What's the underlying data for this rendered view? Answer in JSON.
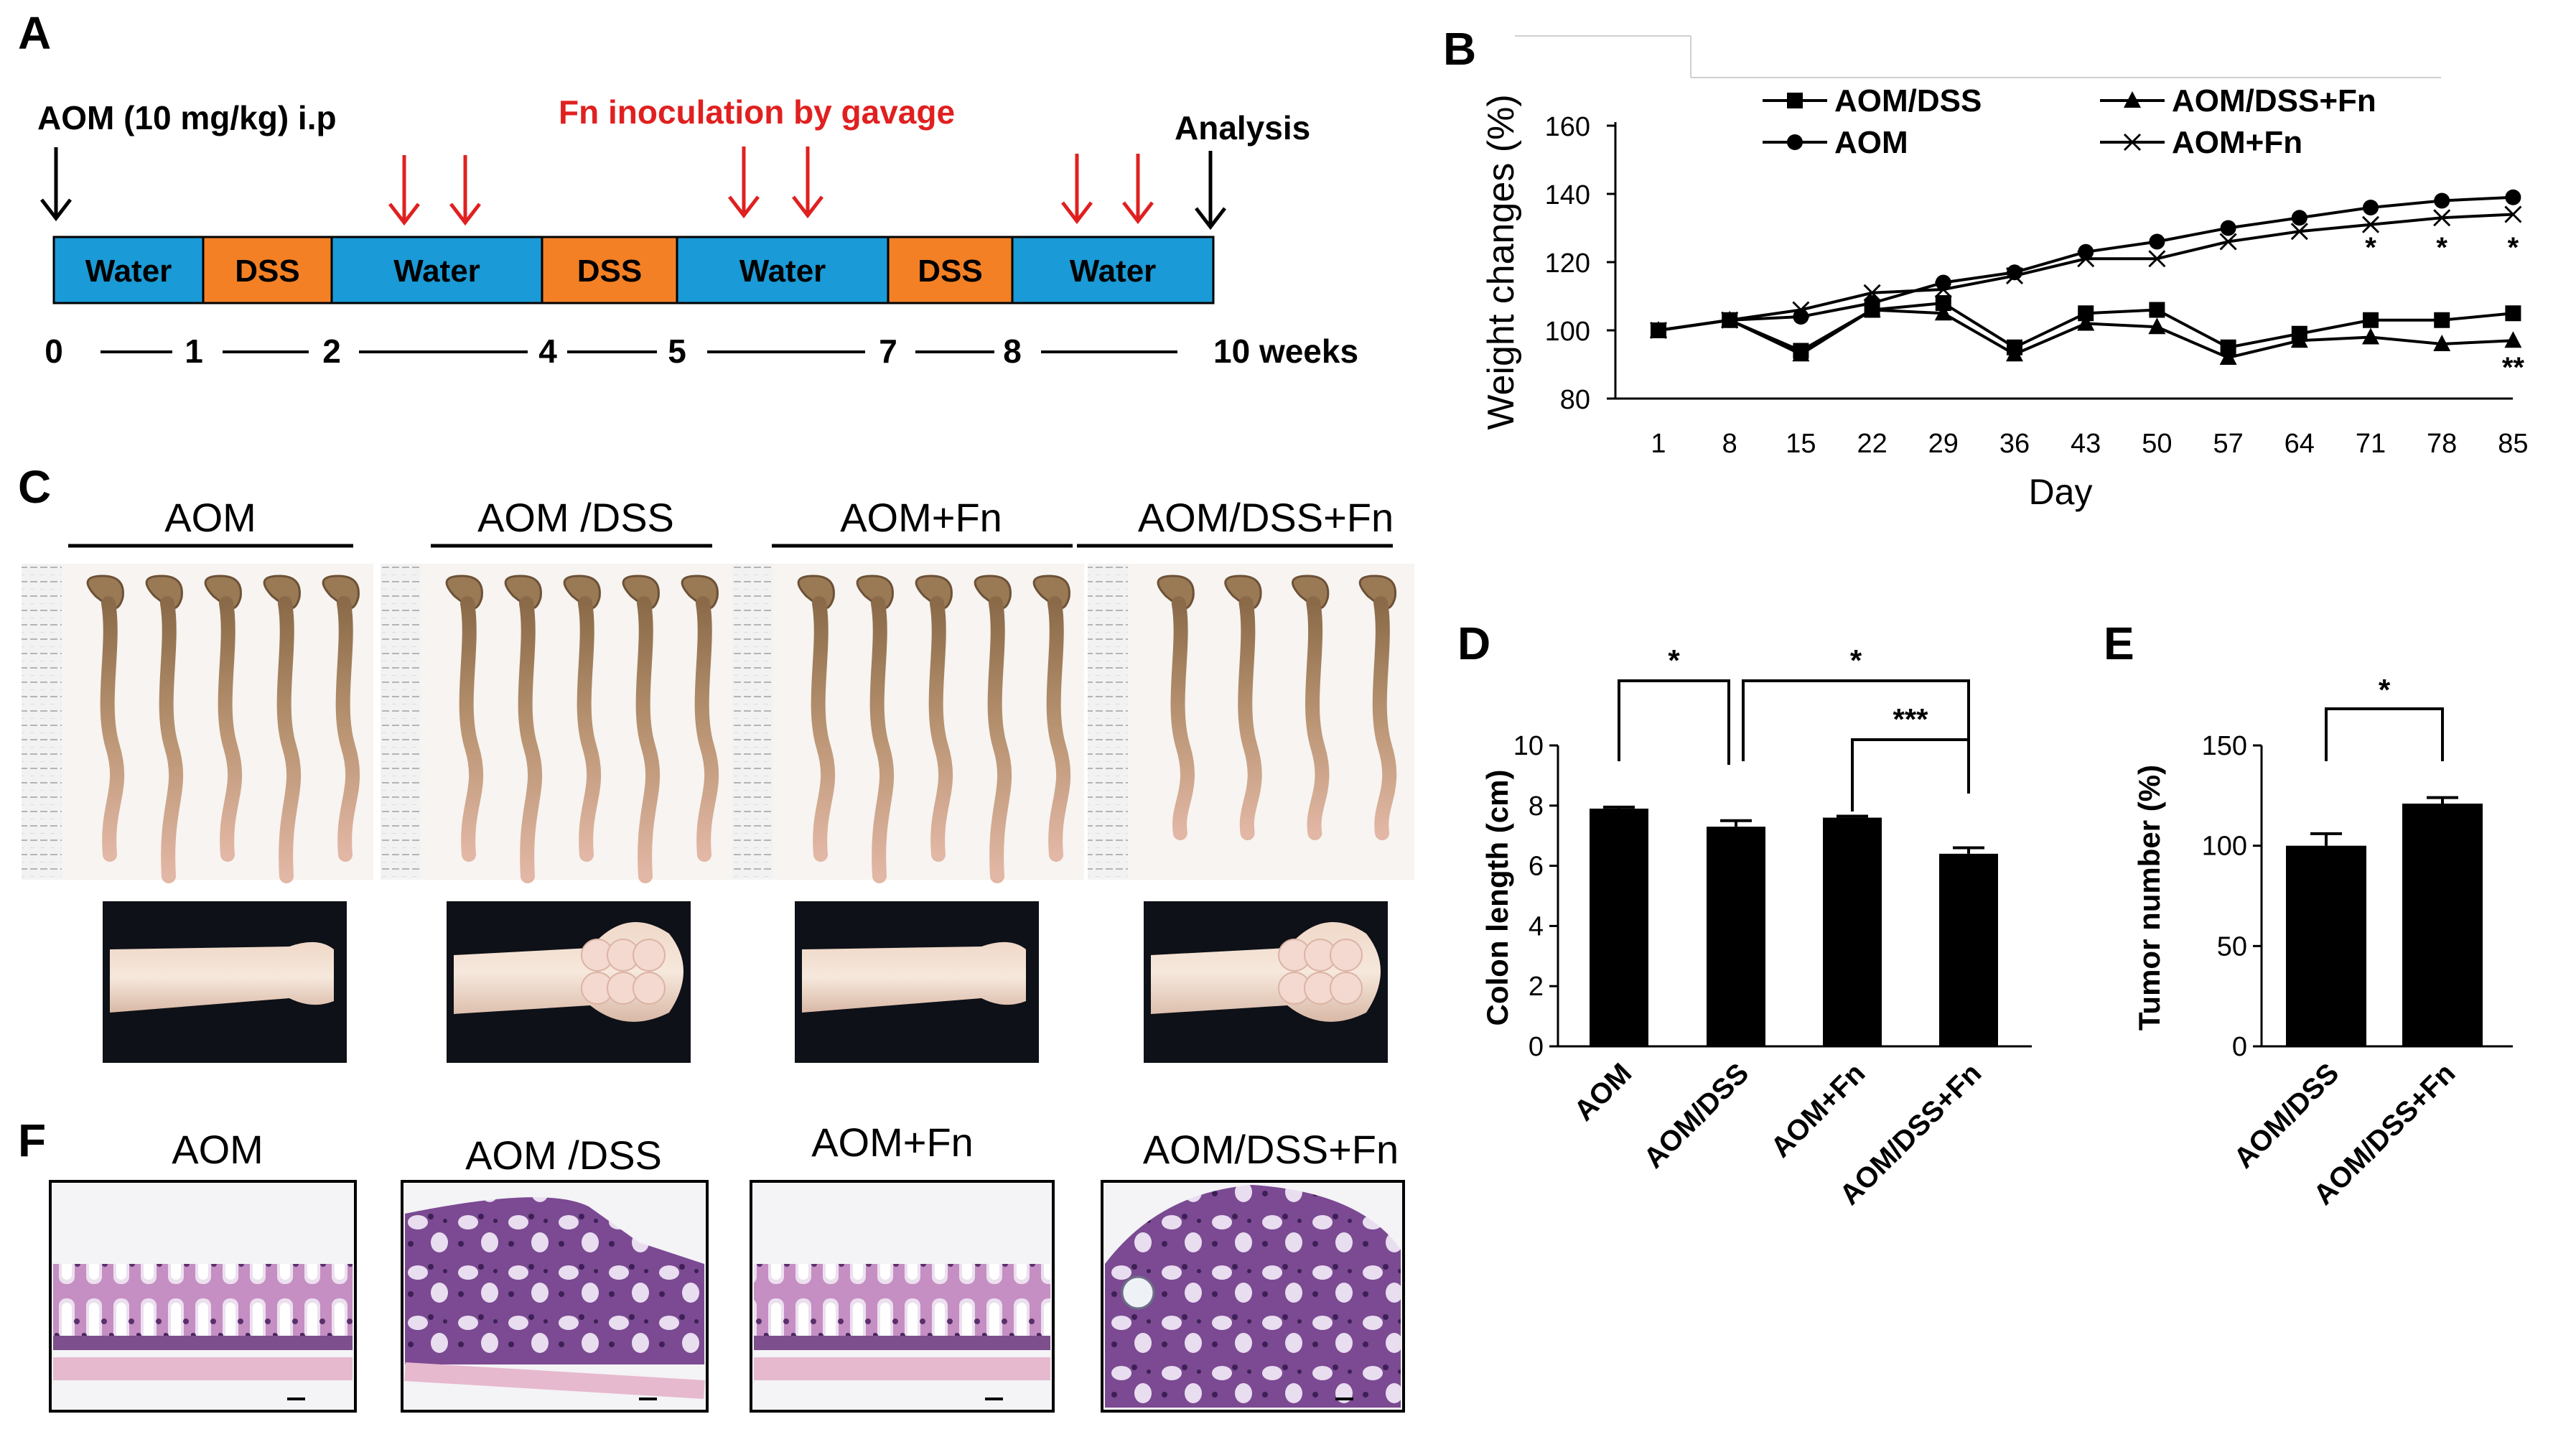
{
  "panels": {
    "a": "A",
    "b": "B",
    "c": "C",
    "d": "D",
    "e": "E",
    "f": "F"
  },
  "timeline": {
    "aom_label": "AOM (10 mg/kg) i.p",
    "fn_label": "Fn inoculation by gavage",
    "analysis_label": "Analysis",
    "segments": [
      {
        "label": "Water",
        "color": "#1a9ad6"
      },
      {
        "label": "DSS",
        "color": "#f38025"
      },
      {
        "label": "Water",
        "color": "#1a9ad6"
      },
      {
        "label": "DSS",
        "color": "#f38025"
      },
      {
        "label": "Water",
        "color": "#1a9ad6"
      },
      {
        "label": "DSS",
        "color": "#f38025"
      },
      {
        "label": "Water",
        "color": "#1a9ad6"
      }
    ],
    "ticks": [
      "0",
      "1",
      "2",
      "4",
      "5",
      "7",
      "8",
      "10 weeks"
    ],
    "black_arrow_color": "#000000",
    "red_arrow_color": "#e02020"
  },
  "groups_c": [
    "AOM",
    "AOM /DSS",
    "AOM+Fn",
    "AOM/DSS+Fn"
  ],
  "groups_f": [
    "AOM",
    "AOM /DSS",
    "AOM+Fn",
    "AOM/DSS+Fn"
  ],
  "chart_data": [
    {
      "type": "line",
      "title": "",
      "xlabel": "Day",
      "ylabel": "Weight changes (%)",
      "ylim": [
        80,
        160
      ],
      "yticks": [
        "80",
        "100",
        "120",
        "140",
        "160"
      ],
      "x": [
        "1",
        "8",
        "15",
        "22",
        "29",
        "36",
        "43",
        "50",
        "57",
        "64",
        "71",
        "78",
        "85"
      ],
      "series": [
        {
          "name": "AOM/DSS",
          "marker": "square",
          "values": [
            100,
            103,
            94,
            106,
            108,
            95,
            105,
            106,
            95,
            99,
            103,
            103,
            105
          ]
        },
        {
          "name": "AOM",
          "marker": "circle",
          "values": [
            100,
            103,
            104,
            108,
            114,
            117,
            123,
            126,
            130,
            133,
            136,
            138,
            139
          ]
        },
        {
          "name": "AOM/DSS+Fn",
          "marker": "triangle",
          "values": [
            100,
            103,
            93,
            106,
            105,
            93,
            102,
            101,
            92,
            97,
            98,
            96,
            97
          ]
        },
        {
          "name": "AOM+Fn",
          "marker": "x",
          "values": [
            100,
            103,
            106,
            111,
            112,
            116,
            121,
            121,
            126,
            129,
            131,
            133,
            134
          ]
        }
      ],
      "annotations": [
        {
          "day": "71",
          "text": "*"
        },
        {
          "day": "78",
          "text": "*"
        },
        {
          "day": "85",
          "text": "*"
        },
        {
          "day": "85",
          "text": "**"
        }
      ],
      "legend": "top"
    },
    {
      "type": "bar",
      "title": "",
      "xlabel": "",
      "ylabel": "Colon length (cm)",
      "ylim": [
        0,
        10
      ],
      "yticks": [
        "0",
        "2",
        "4",
        "6",
        "8",
        "10"
      ],
      "categories": [
        "AOM",
        "AOM/DSS",
        "AOM+Fn",
        "AOM/DSS+Fn"
      ],
      "values": [
        7.9,
        7.3,
        7.6,
        6.4
      ],
      "errors": [
        0.05,
        0.2,
        0.05,
        0.2
      ],
      "significance": [
        {
          "from": "AOM",
          "to": "AOM/DSS",
          "text": "*"
        },
        {
          "from": "AOM/DSS",
          "to": "AOM/DSS+Fn",
          "text": "*"
        },
        {
          "from": "AOM+Fn",
          "to": "AOM/DSS+Fn",
          "text": "***"
        }
      ]
    },
    {
      "type": "bar",
      "title": "",
      "xlabel": "",
      "ylabel": "Tumor number (%)",
      "ylim": [
        0,
        150
      ],
      "yticks": [
        "0",
        "50",
        "100",
        "150"
      ],
      "categories": [
        "AOM/DSS",
        "AOM/DSS+Fn"
      ],
      "values": [
        100,
        121
      ],
      "errors": [
        6,
        3
      ],
      "significance": [
        {
          "from": "AOM/DSS",
          "to": "AOM/DSS+Fn",
          "text": "*"
        }
      ]
    }
  ]
}
